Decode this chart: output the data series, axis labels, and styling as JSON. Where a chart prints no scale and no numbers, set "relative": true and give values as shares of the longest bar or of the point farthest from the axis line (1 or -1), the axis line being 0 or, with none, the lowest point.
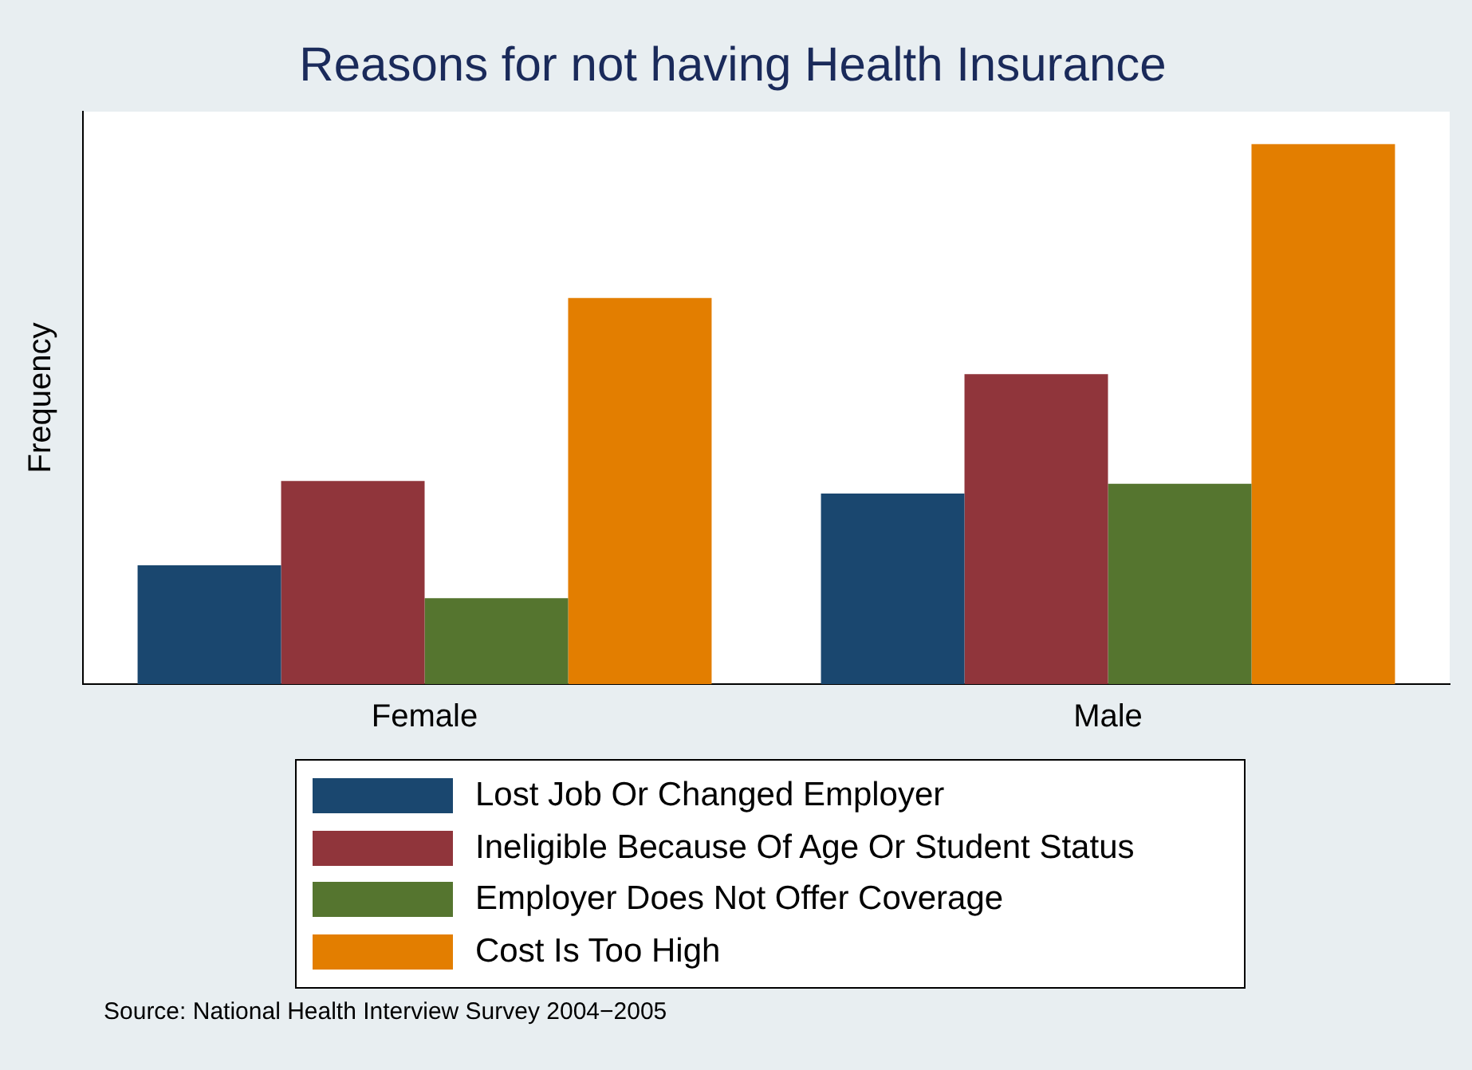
{
  "chart_data": {
    "type": "bar",
    "title": "Reasons for not having Health Insurance",
    "ylabel": "Frequency",
    "relative": true,
    "categories": [
      "Female",
      "Male"
    ],
    "series": [
      {
        "name": "Lost Job Or Changed Employer",
        "color": "#1a476f",
        "values": [
          0.22,
          0.353
        ]
      },
      {
        "name": "Ineligible Because Of Age Or Student Status",
        "color": "#90353b",
        "values": [
          0.376,
          0.574
        ]
      },
      {
        "name": "Employer Does Not Offer Coverage",
        "color": "#55752f",
        "values": [
          0.159,
          0.371
        ]
      },
      {
        "name": "Cost Is Too High",
        "color": "#e37e00",
        "values": [
          0.715,
          1
        ]
      }
    ],
    "legend": "bottom",
    "grid": false,
    "annotations": [
      "Source:  National Health Interview Survey 2004−2005"
    ]
  }
}
